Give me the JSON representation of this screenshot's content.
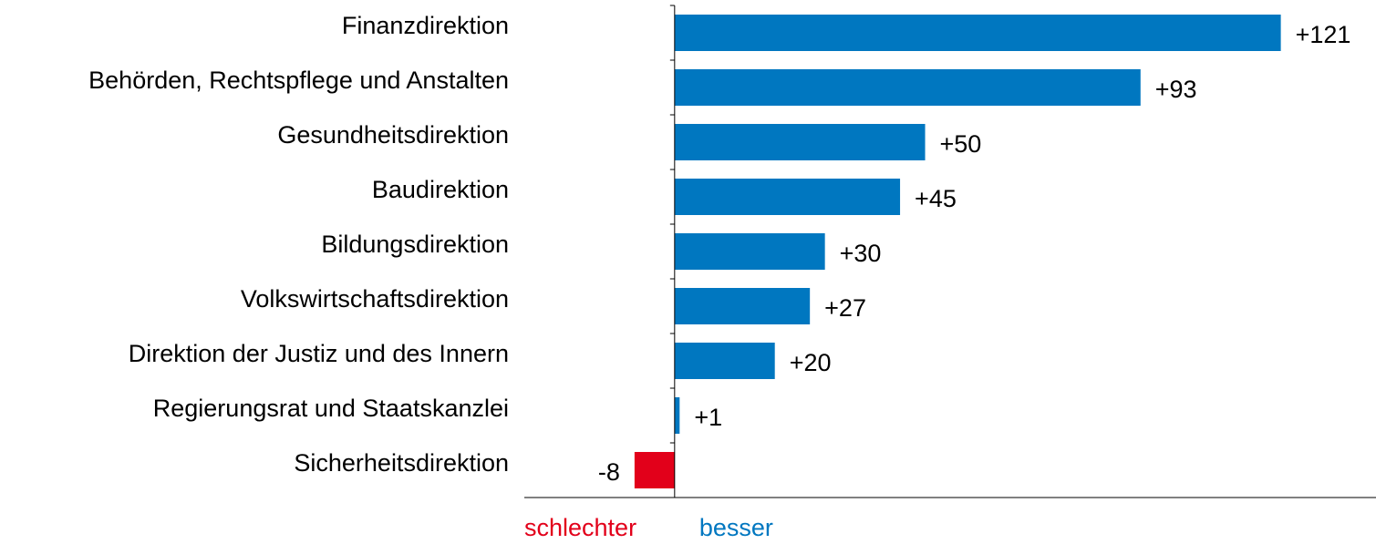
{
  "chart_data": {
    "type": "hbar",
    "categories": [
      "Finanzdirektion",
      "Behörden, Rechtspflege und Anstalten",
      "Gesundheitsdirektion",
      "Baudirektion",
      "Bildungsdirektion",
      "Volkswirtschaftsdirektion",
      "Direktion der Justiz und des Innern",
      "Regierungsrat und Staatskanzlei",
      "Sicherheitsdirektion"
    ],
    "values": [
      121,
      93,
      50,
      45,
      30,
      27,
      20,
      1,
      -8
    ],
    "value_labels": [
      "+121",
      "+93",
      "+50",
      "+45",
      "+30",
      "+27",
      "+20",
      "+1",
      "-8"
    ],
    "positive_color": "#0077c0",
    "negative_color": "#e2001a",
    "xlim": [
      -30,
      140
    ],
    "annotations": [
      {
        "text": "schlechter",
        "color": "#e2001a"
      },
      {
        "text": "besser",
        "color": "#0077c0"
      }
    ]
  }
}
